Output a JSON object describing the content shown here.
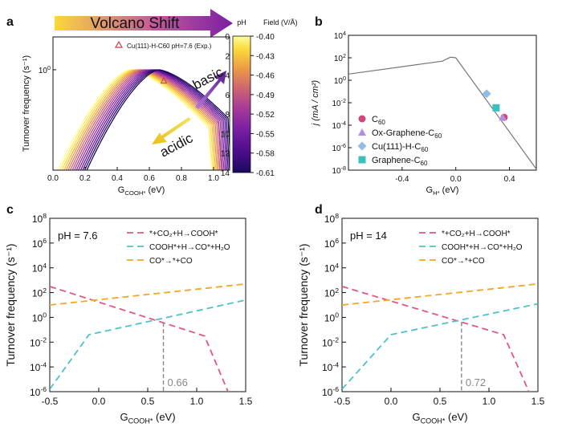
{
  "chart_data": [
    {
      "panel": "a",
      "type": "line",
      "title": "",
      "xlabel": "G",
      "xlabel_sub": "COOH*",
      "xlabel_unit": " (eV)",
      "ylabel": "Turnover frequency (s⁻¹)",
      "xlim": [
        0.0,
        1.1
      ],
      "xticks": [
        "0.0",
        "0.2",
        "0.4",
        "0.6",
        "0.8",
        "1.0"
      ],
      "xtick_values": [
        0.0,
        0.2,
        0.4,
        0.6,
        0.8,
        1.0
      ],
      "ylim_log": [
        -0.55,
        0.18
      ],
      "ytick_labels": [
        {
          "base": "10",
          "exp": "0",
          "log": 0
        }
      ],
      "series_note": "family of volcano curves, one per pH from 0 to 14",
      "curve_count": 15,
      "peak_x_range": [
        0.48,
        0.66
      ],
      "peak_log_y": 0.0,
      "experimental_point": {
        "x": 0.69,
        "log_y": -0.06
      },
      "legend": "Cu(111)-H-C60 pH=7.6 (Exp.)",
      "arrow_title": "Volcano Shift",
      "annotation_basic": "basic",
      "annotation_acidic": "acidic",
      "colorbar": {
        "title_left": "pH",
        "title_right": "Field (V/Å)",
        "ph_ticks": [
          "0",
          "2",
          "4",
          "6",
          "8",
          "10",
          "12",
          "14"
        ],
        "field_ticks": [
          "-0.40",
          "-0.43",
          "-0.46",
          "-0.49",
          "-0.52",
          "-0.55",
          "-0.58",
          "-0.61"
        ],
        "colors": [
          "#1a0a5e",
          "#4b0c8a",
          "#7a1fa3",
          "#a93d96",
          "#cf6570",
          "#ec9a46",
          "#fbd83a",
          "#fdfd9c"
        ]
      }
    },
    {
      "panel": "b",
      "type": "scatter",
      "xlabel": "G",
      "xlabel_sub": "H*",
      "xlabel_unit": " (eV)",
      "ylabel": "j (mA / cm²)",
      "xlim": [
        -0.8,
        0.6
      ],
      "xticks": [
        "-0.4",
        "0.0",
        "0.4"
      ],
      "xtick_values": [
        -0.4,
        0.0,
        0.4
      ],
      "ylim_log": [
        -8,
        4
      ],
      "ytick_labels": [
        {
          "base": "10",
          "exp": "4",
          "log": 4
        },
        {
          "base": "10",
          "exp": "2",
          "log": 2
        },
        {
          "base": "10",
          "exp": "0",
          "log": 0
        },
        {
          "base": "10",
          "exp": "-2",
          "log": -2
        },
        {
          "base": "10",
          "exp": "-4",
          "log": -4
        },
        {
          "base": "10",
          "exp": "-6",
          "log": -6
        },
        {
          "base": "10",
          "exp": "-8",
          "log": -8
        }
      ],
      "volcano_line": [
        [
          -0.8,
          0.55
        ],
        [
          -0.1,
          1.7
        ],
        [
          -0.04,
          2.05
        ],
        [
          0.0,
          2.0
        ],
        [
          0.6,
          -7.9
        ]
      ],
      "points": [
        {
          "name": "C60",
          "sub": "60",
          "label": "C",
          "x": 0.36,
          "log_y": -3.3,
          "marker": "circle",
          "color": "#d2467a"
        },
        {
          "name": "Ox-Graphene-C60",
          "sub": "60",
          "label": "Ox-Graphene-C",
          "x": 0.35,
          "log_y": -3.3,
          "marker": "triangle",
          "color": "#b48ee0"
        },
        {
          "name": "Cu(111)-H-C60",
          "sub": "60",
          "label": "Cu(111)-H-C",
          "x": 0.23,
          "log_y": -1.2,
          "marker": "diamond",
          "color": "#93bde2"
        },
        {
          "name": "Graphene-C60",
          "sub": "60",
          "label": "Graphene-C",
          "x": 0.3,
          "log_y": -2.45,
          "marker": "square",
          "color": "#3bbfbf"
        }
      ]
    },
    {
      "panel": "c",
      "type": "line",
      "annotation": "pH = 7.6",
      "xlabel": "G",
      "xlabel_sub": "COOH*",
      "xlabel_unit": "  (eV)",
      "ylabel": "Turnover frequency (s⁻¹)",
      "xlim": [
        -0.5,
        1.5
      ],
      "xticks": [
        "-0.5",
        "0.0",
        "0.5",
        "1.0",
        "1.5"
      ],
      "xtick_values": [
        -0.5,
        0.0,
        0.5,
        1.0,
        1.5
      ],
      "ylim_log": [
        -6,
        8
      ],
      "ytick_labels": [
        {
          "base": "10",
          "exp": "8",
          "log": 8
        },
        {
          "base": "10",
          "exp": "6",
          "log": 6
        },
        {
          "base": "10",
          "exp": "4",
          "log": 4
        },
        {
          "base": "10",
          "exp": "2",
          "log": 2
        },
        {
          "base": "10",
          "exp": "0",
          "log": 0
        },
        {
          "base": "10",
          "exp": "-2",
          "log": -2
        },
        {
          "base": "10",
          "exp": "-4",
          "log": -4
        },
        {
          "base": "10",
          "exp": "-6",
          "log": -6
        }
      ],
      "series": [
        {
          "name": "*+CO₂+H→COOH*",
          "color": "#e0577f",
          "points": [
            [
              -0.5,
              2.5
            ],
            [
              1.08,
              -1.5
            ],
            [
              1.33,
              -6.2
            ]
          ]
        },
        {
          "name": "COOH*+H→CO*+H₂O",
          "color": "#4fc2c8",
          "points": [
            [
              -0.5,
              -5.8
            ],
            [
              -0.1,
              -1.4
            ],
            [
              1.5,
              1.4
            ]
          ]
        },
        {
          "name": "CO*→*+CO",
          "color": "#f5a623",
          "points": [
            [
              -0.5,
              1.0
            ],
            [
              1.5,
              2.7
            ]
          ]
        }
      ],
      "marker_line_x": 0.66,
      "marker_label": "0.66"
    },
    {
      "panel": "d",
      "type": "line",
      "annotation": "pH = 14",
      "xlabel": "G",
      "xlabel_sub": "COOH*",
      "xlabel_unit": "  (eV)",
      "ylabel": "Turnover frequency (s⁻¹)",
      "xlim": [
        -0.5,
        1.5
      ],
      "xticks": [
        "-0.5",
        "0.0",
        "0.5",
        "1.0",
        "1.5"
      ],
      "xtick_values": [
        -0.5,
        0.0,
        0.5,
        1.0,
        1.5
      ],
      "ylim_log": [
        -6,
        8
      ],
      "ytick_labels": [
        {
          "base": "10",
          "exp": "8",
          "log": 8
        },
        {
          "base": "10",
          "exp": "6",
          "log": 6
        },
        {
          "base": "10",
          "exp": "4",
          "log": 4
        },
        {
          "base": "10",
          "exp": "2",
          "log": 2
        },
        {
          "base": "10",
          "exp": "0",
          "log": 0
        },
        {
          "base": "10",
          "exp": "-2",
          "log": -2
        },
        {
          "base": "10",
          "exp": "-4",
          "log": -4
        },
        {
          "base": "10",
          "exp": "-6",
          "log": -6
        }
      ],
      "series": [
        {
          "name": "*+CO₂+H→COOH*",
          "color": "#e0577f",
          "points": [
            [
              -0.5,
              2.5
            ],
            [
              1.15,
              -1.4
            ],
            [
              1.42,
              -6.2
            ]
          ]
        },
        {
          "name": "COOH*+H→CO*+H₂O",
          "color": "#4fc2c8",
          "points": [
            [
              -0.5,
              -5.8
            ],
            [
              0.0,
              -1.4
            ],
            [
              1.5,
              1.1
            ]
          ]
        },
        {
          "name": "CO*→*+CO",
          "color": "#f5a623",
          "points": [
            [
              -0.5,
              1.0
            ],
            [
              1.5,
              2.7
            ]
          ]
        }
      ],
      "marker_line_x": 0.72,
      "marker_label": "0.72"
    }
  ]
}
